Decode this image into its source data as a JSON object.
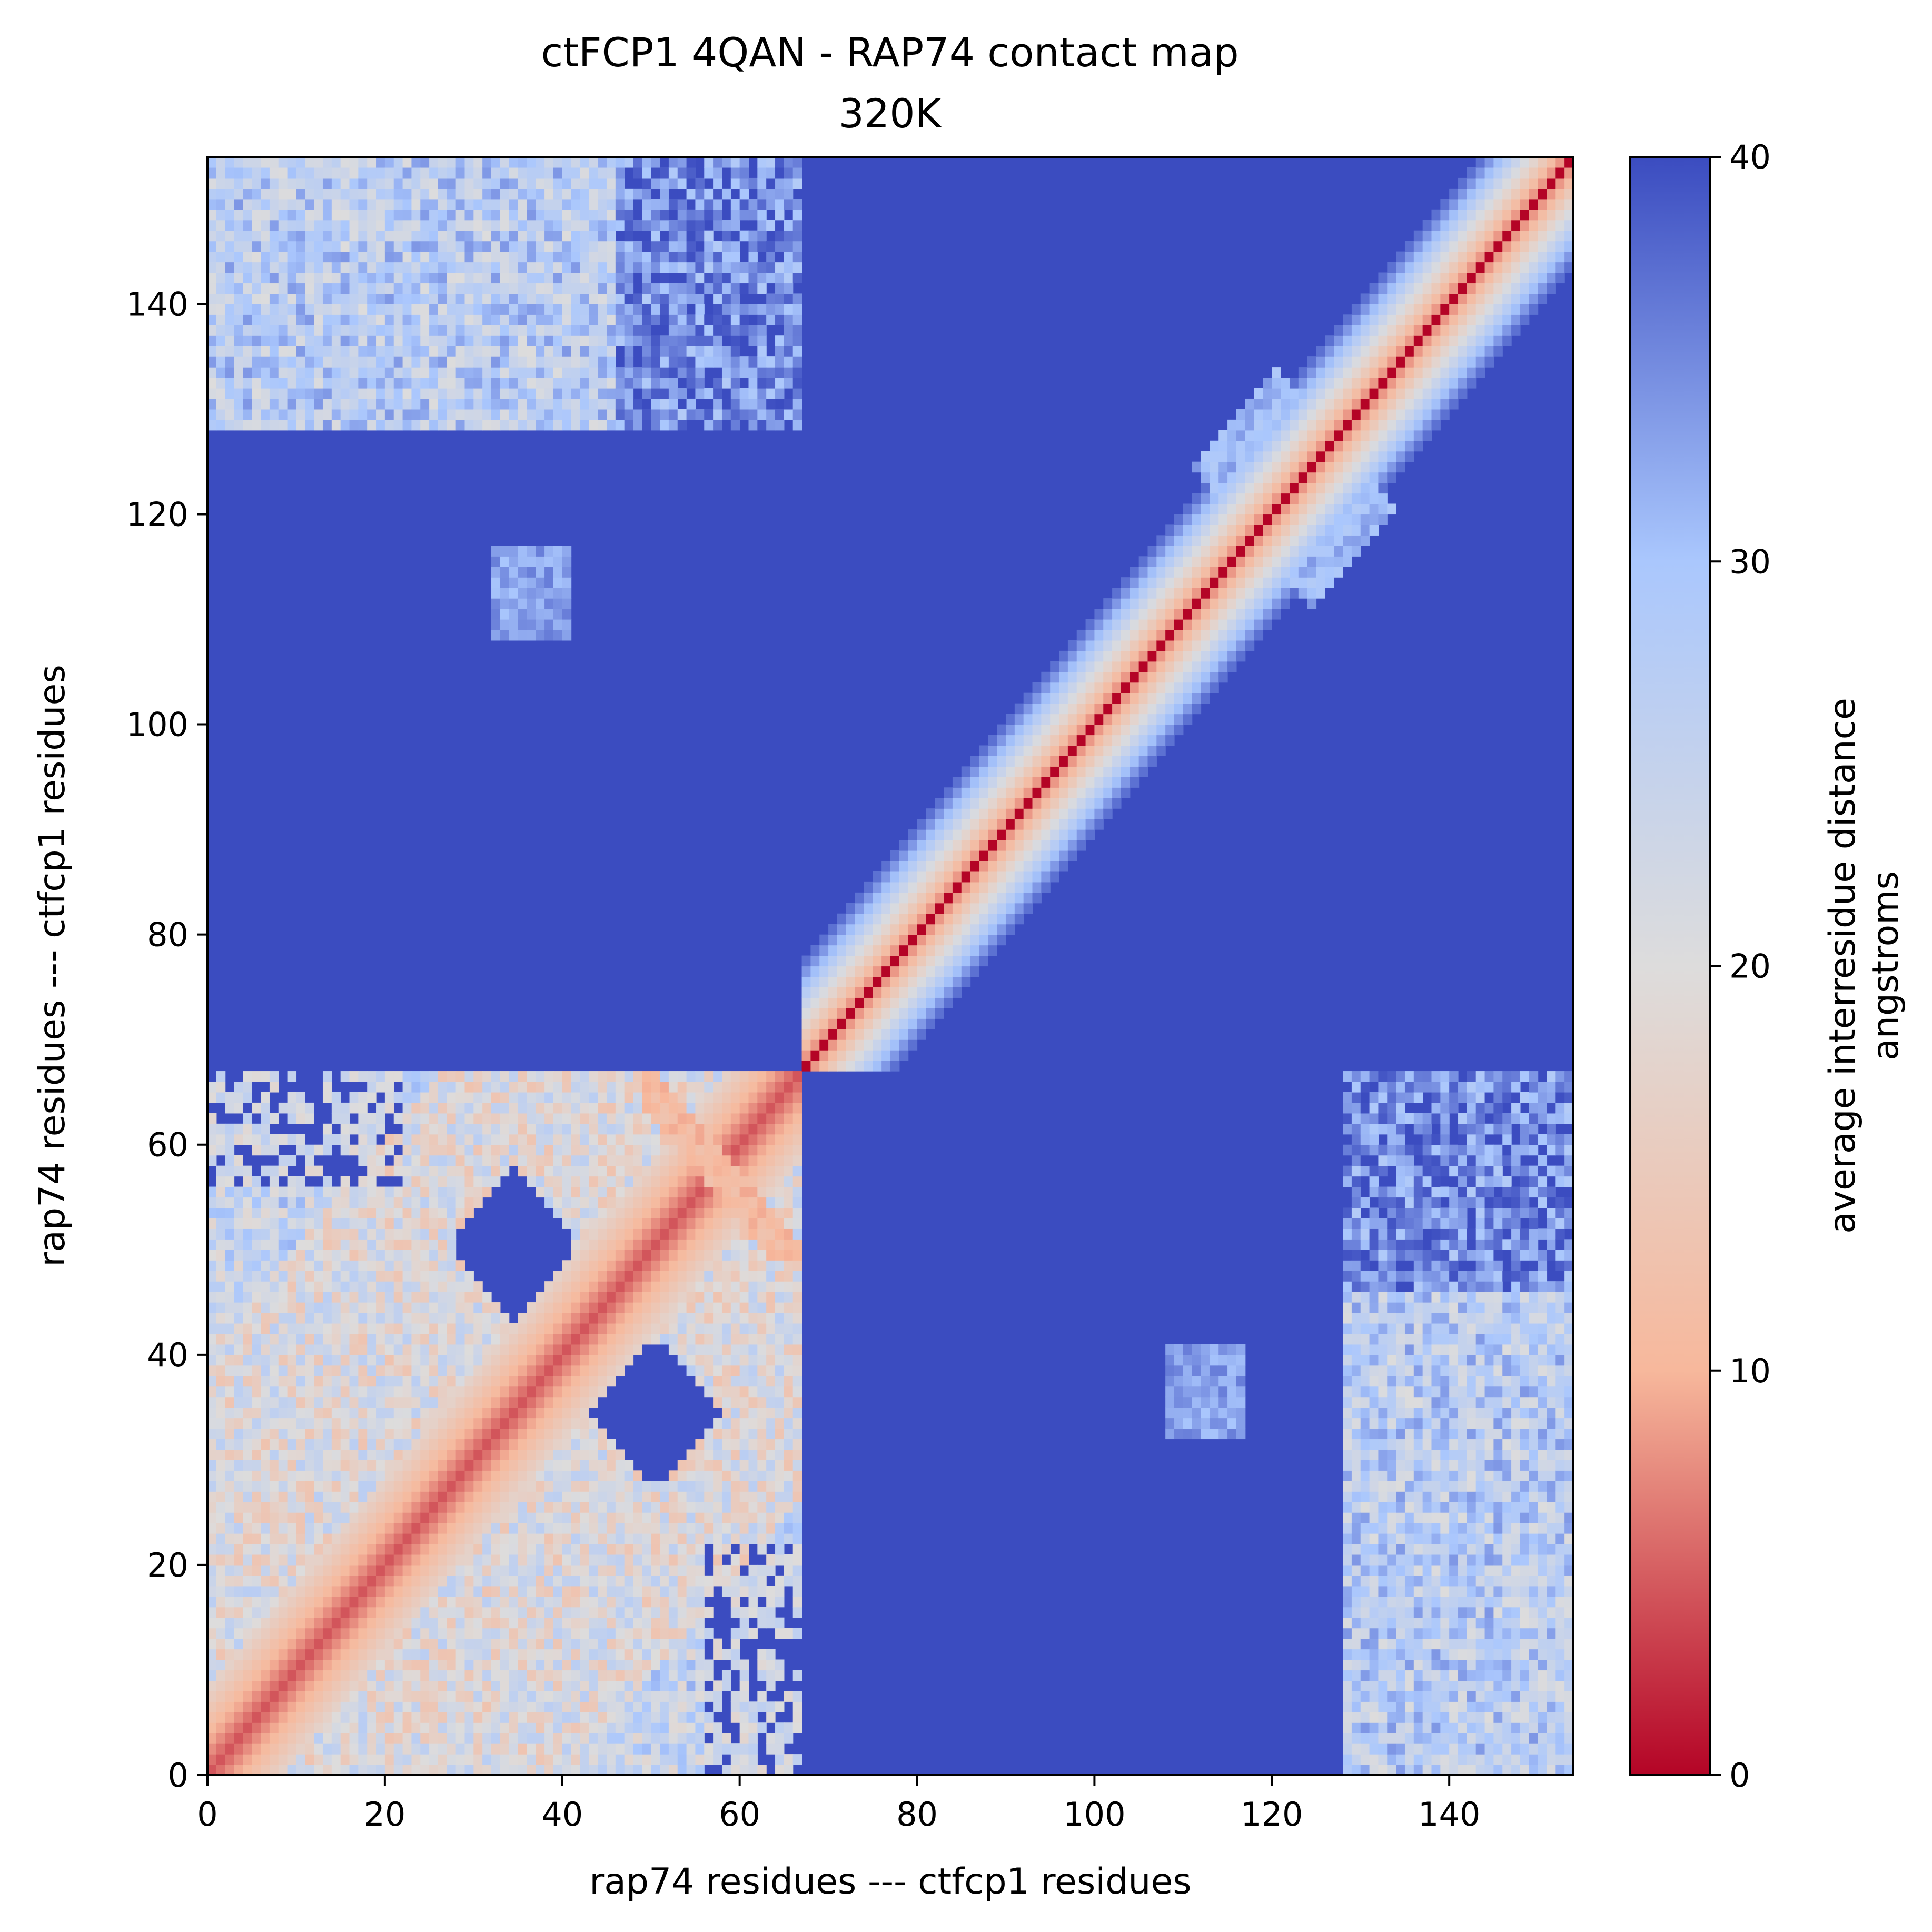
{
  "chart_data": {
    "type": "heatmap",
    "title": "ctFCP1 4QAN - RAP74 contact map",
    "subtitle": "320K",
    "xlabel": "rap74 residues --- ctfcp1 residues",
    "ylabel": "rap74 residues --- ctfcp1 residues",
    "xlim": [
      0,
      154
    ],
    "ylim": [
      0,
      154
    ],
    "xticks": [
      0,
      20,
      40,
      60,
      80,
      100,
      120,
      140
    ],
    "yticks": [
      0,
      20,
      40,
      60,
      80,
      100,
      120,
      140
    ],
    "n_residues": 154,
    "segments": [
      {
        "name": "rap74",
        "start": 0,
        "end": 67
      },
      {
        "name": "ctfcp1",
        "start": 67,
        "end": 154
      }
    ],
    "colorbar": {
      "label_line1": "average interresidue distance",
      "label_line2": "angstroms",
      "min": 0,
      "max": 40,
      "ticks": [
        0,
        10,
        20,
        30,
        40
      ],
      "colormap": "coolwarm_r",
      "color_stops": [
        "#b40426",
        "#f7b89c",
        "#dddcdc",
        "#aac7fd",
        "#3b4cc0"
      ]
    },
    "features": [
      {
        "description": "diagonal self-contact",
        "distance": 0
      },
      {
        "region": "rap74-rap74 block",
        "x": [
          0,
          67
        ],
        "y": [
          0,
          67
        ],
        "typical_distance": 20
      },
      {
        "region": "ctfcp1-ctfcp1 band",
        "x": [
          67,
          154
        ],
        "y": [
          67,
          154
        ],
        "band_width": 8
      },
      {
        "region": "rap74-ctfcp1 contact patch",
        "x": [
          0,
          67
        ],
        "y": [
          128,
          154
        ],
        "typical_distance": 24
      },
      {
        "region": "ctfcp1-rap74 contact patch",
        "x": [
          128,
          154
        ],
        "y": [
          0,
          67
        ],
        "typical_distance": 24
      },
      {
        "region": "ctfcp1 X-shaped contact",
        "center": [
          122,
          122
        ],
        "distance": 28
      }
    ]
  }
}
